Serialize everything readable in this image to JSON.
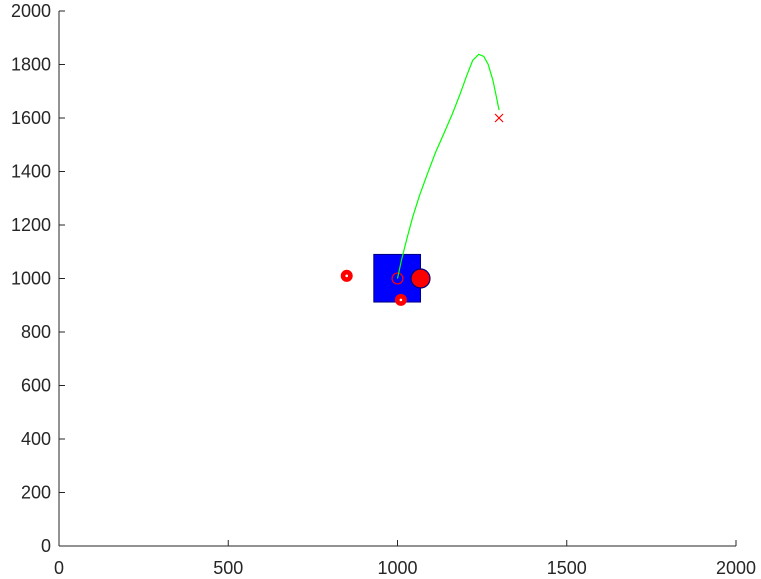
{
  "chart_data": {
    "type": "scatter",
    "title": "",
    "xlabel": "",
    "ylabel": "",
    "xlim": [
      0,
      2000
    ],
    "ylim": [
      0,
      2000
    ],
    "grid": false,
    "x_ticks": [
      0,
      500,
      1000,
      1500,
      2000
    ],
    "y_ticks": [
      0,
      200,
      400,
      600,
      800,
      1000,
      1200,
      1400,
      1600,
      1800,
      2000
    ],
    "x_tick_labels": [
      "0",
      "500",
      "1000",
      "1500",
      "2000"
    ],
    "y_tick_labels": [
      "0",
      "200",
      "400",
      "600",
      "800",
      "1000",
      "1200",
      "1400",
      "1600",
      "1800",
      "2000"
    ],
    "trajectory": {
      "color": "#00ff00",
      "points": [
        [
          1000,
          1000
        ],
        [
          1012,
          1070
        ],
        [
          1028,
          1150
        ],
        [
          1045,
          1230
        ],
        [
          1065,
          1310
        ],
        [
          1088,
          1390
        ],
        [
          1112,
          1470
        ],
        [
          1138,
          1545
        ],
        [
          1162,
          1615
        ],
        [
          1185,
          1690
        ],
        [
          1205,
          1760
        ],
        [
          1222,
          1815
        ],
        [
          1240,
          1838
        ],
        [
          1255,
          1830
        ],
        [
          1268,
          1800
        ],
        [
          1282,
          1740
        ],
        [
          1292,
          1680
        ],
        [
          1300,
          1630
        ]
      ]
    },
    "target": {
      "x": 1300,
      "y": 1600,
      "marker": "x",
      "color": "#ff0000"
    },
    "box": {
      "x0": 930,
      "x1": 1068,
      "y0": 912,
      "y1": 1090,
      "fill": "#0000ff",
      "stroke": "#000080"
    },
    "objects": [
      {
        "x": 1000,
        "y": 1000,
        "r": 16,
        "fill": "none",
        "stroke": "#ff0000"
      },
      {
        "x": 1068,
        "y": 1000,
        "r": 28,
        "fill": "#ff0000",
        "stroke": "#000080"
      },
      {
        "x": 850,
        "y": 1010,
        "r": 16,
        "fill": "#ff0000",
        "stroke": "#ff0000",
        "dot": true
      },
      {
        "x": 1010,
        "y": 920,
        "r": 16,
        "fill": "#ff0000",
        "stroke": "#ff0000",
        "dot": true
      }
    ]
  }
}
